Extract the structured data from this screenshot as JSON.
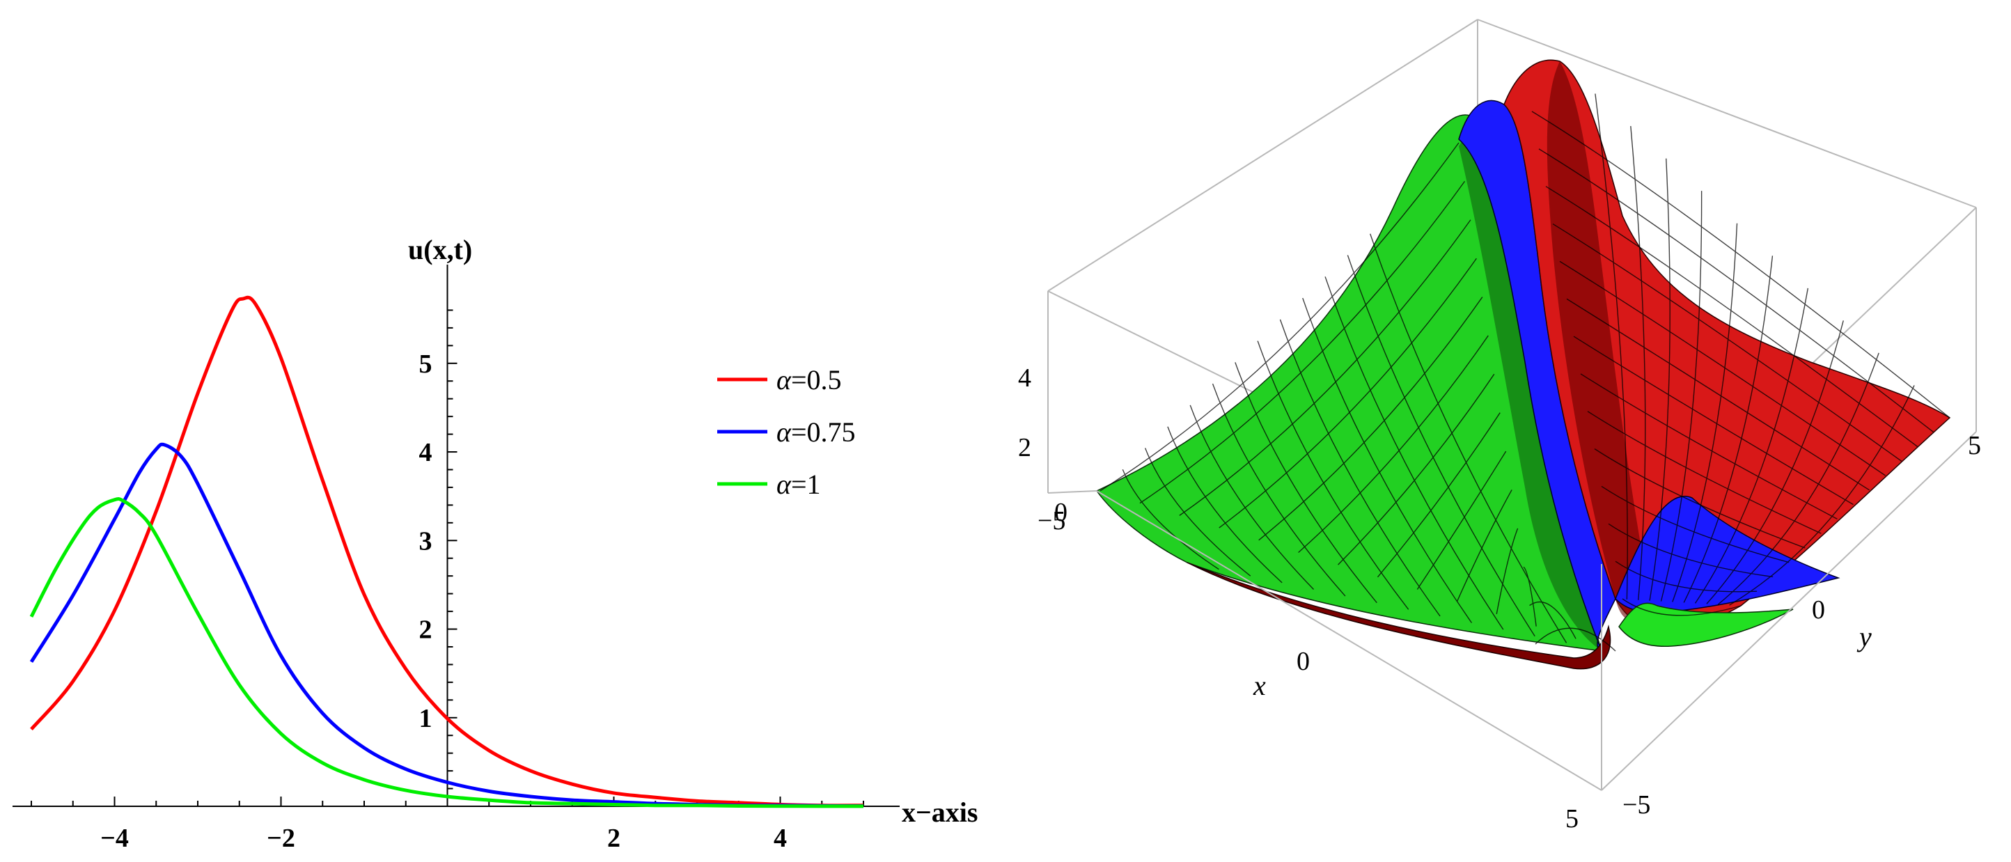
{
  "chart_data": [
    {
      "type": "line",
      "title": "",
      "xlabel": "x−axis",
      "ylabel": "u(x,t)",
      "xlim": [
        -5,
        5
      ],
      "ylim": [
        0,
        5.8
      ],
      "x_ticks": [
        -4,
        -2,
        2,
        4
      ],
      "x_tick_labels": [
        "−4",
        "−2",
        "2",
        "4"
      ],
      "y_ticks": [
        1,
        2,
        3,
        4,
        5
      ],
      "y_tick_labels": [
        "1",
        "2",
        "3",
        "4",
        "5"
      ],
      "legend_position": "right",
      "grid": false,
      "series": [
        {
          "name": "α=0.5",
          "name_parts": {
            "symbol": "α",
            "rest": "=0.5"
          },
          "color": "#ff0000",
          "x": [
            -5.0,
            -4.5,
            -4.0,
            -3.5,
            -3.0,
            -2.6,
            -2.45,
            -2.3,
            -2.0,
            -1.5,
            -1.0,
            -0.5,
            0.0,
            0.5,
            1.0,
            1.5,
            2.0,
            2.5,
            3.0,
            3.5,
            4.0,
            4.5,
            5.0
          ],
          "y": [
            0.87,
            1.41,
            2.21,
            3.33,
            4.66,
            5.58,
            5.73,
            5.66,
            5.06,
            3.68,
            2.39,
            1.55,
            0.99,
            0.63,
            0.4,
            0.25,
            0.15,
            0.1,
            0.06,
            0.04,
            0.02,
            0.01,
            0.01
          ]
        },
        {
          "name": "α=0.75",
          "name_parts": {
            "symbol": "α",
            "rest": "=0.75"
          },
          "color": "#0000ff",
          "x": [
            -5.0,
            -4.5,
            -4.0,
            -3.7,
            -3.5,
            -3.4,
            -3.2,
            -3.0,
            -2.5,
            -2.0,
            -1.5,
            -1.0,
            -0.5,
            0.0,
            0.5,
            1.0,
            1.5,
            2.0,
            2.5,
            3.0,
            3.5,
            4.0,
            4.5,
            5.0
          ],
          "y": [
            1.63,
            2.38,
            3.24,
            3.77,
            4.03,
            4.08,
            3.95,
            3.64,
            2.67,
            1.7,
            1.05,
            0.66,
            0.42,
            0.27,
            0.17,
            0.11,
            0.07,
            0.05,
            0.03,
            0.02,
            0.01,
            0.01,
            0.005,
            0.003
          ]
        },
        {
          "name": "α=1",
          "name_parts": {
            "symbol": "α",
            "rest": "=1"
          },
          "color": "#00ee00",
          "x": [
            -5.0,
            -4.7,
            -4.4,
            -4.2,
            -4.0,
            -3.9,
            -3.7,
            -3.5,
            -3.0,
            -2.5,
            -2.0,
            -1.5,
            -1.0,
            -0.5,
            0.0,
            0.5,
            1.0,
            1.5,
            2.0,
            2.5,
            3.0,
            3.5,
            4.0,
            4.5,
            5.0
          ],
          "y": [
            2.14,
            2.69,
            3.15,
            3.37,
            3.46,
            3.45,
            3.31,
            3.06,
            2.18,
            1.37,
            0.82,
            0.49,
            0.3,
            0.18,
            0.11,
            0.07,
            0.04,
            0.03,
            0.02,
            0.01,
            0.01,
            0.004,
            0.002,
            0.001,
            0.001
          ]
        }
      ]
    },
    {
      "type": "surface3d",
      "title": "",
      "xlabel": "x",
      "ylabel": "y",
      "zlabel": "",
      "xlim": [
        -5,
        5
      ],
      "ylim": [
        -5,
        5
      ],
      "zlim": [
        0,
        5.8
      ],
      "x_tick_labels": [
        "−5",
        "0",
        "5"
      ],
      "y_tick_labels": [
        "−5",
        "0",
        "5"
      ],
      "z_tick_labels": [
        "0",
        "2",
        "4"
      ],
      "surfaces": [
        {
          "name": "",
          "color": "#00dd00",
          "peak": 4.1,
          "edge": 2.1
        },
        {
          "name": "",
          "color": "#0000ff",
          "peak": 4.0
        },
        {
          "name": "",
          "color": "#dd0000",
          "peak": 5.7
        }
      ]
    }
  ]
}
